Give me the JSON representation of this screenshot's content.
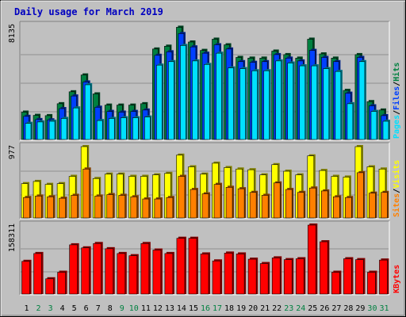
{
  "colors": {
    "background": "#c0c0c0",
    "title": "#0000c0",
    "hits": "#008040",
    "files": "#0040ff",
    "pages": "#00e0ff",
    "visits": "#ffff00",
    "sites": "#ff8000",
    "kbytes": "#ff0000",
    "weekday_label": "#000000",
    "weekend_label": "#008040"
  },
  "chart_data": {
    "type": "bar",
    "title": "Daily usage for March 2019",
    "categories": [
      "1",
      "2",
      "3",
      "4",
      "5",
      "6",
      "7",
      "8",
      "9",
      "10",
      "11",
      "12",
      "13",
      "14",
      "15",
      "16",
      "17",
      "18",
      "19",
      "20",
      "21",
      "22",
      "23",
      "24",
      "25",
      "26",
      "27",
      "28",
      "29",
      "30",
      "31"
    ],
    "weekend_days": [
      "2",
      "3",
      "9",
      "10",
      "16",
      "17",
      "23",
      "24",
      "30",
      "31"
    ],
    "grid": true,
    "panels": [
      {
        "id": "hits-files-pages",
        "max_label": "8135",
        "ylim": [
          0,
          8135
        ],
        "side_labels": [
          "Pages",
          "Files",
          "Hits"
        ],
        "series": [
          {
            "name": "Hits",
            "values": [
              1950,
              1720,
              1700,
              2550,
              3400,
              4600,
              3250,
              2450,
              2450,
              2450,
              2550,
              6450,
              6650,
              8000,
              6950,
              6350,
              7150,
              6750,
              5850,
              5800,
              5800,
              6300,
              6050,
              5800,
              7150,
              6100,
              5800,
              3500,
              6050,
              2700,
              2100
            ]
          },
          {
            "name": "Files",
            "values": [
              1650,
              1420,
              1400,
              2200,
              3100,
              4100,
              2300,
              2000,
              1950,
              2000,
              2100,
              6000,
              6250,
              7550,
              6600,
              6150,
              6750,
              6450,
              5550,
              5500,
              5550,
              6050,
              5800,
              5600,
              6350,
              5850,
              5550,
              3300,
              5850,
              2400,
              1700
            ]
          },
          {
            "name": "Pages",
            "values": [
              1150,
              1250,
              1300,
              1500,
              2250,
              3900,
              1350,
              1500,
              1550,
              1550,
              1600,
              5300,
              5550,
              6700,
              5600,
              5350,
              6150,
              5100,
              5050,
              4900,
              4900,
              5600,
              5450,
              5250,
              5250,
              5050,
              4850,
              2550,
              5550,
              2000,
              1300
            ]
          }
        ]
      },
      {
        "id": "visits-sites",
        "max_label": "977",
        "ylim": [
          0,
          977
        ],
        "side_labels": [
          "Sites",
          "Visits"
        ],
        "series": [
          {
            "name": "Visits",
            "values": [
              470,
              500,
              460,
              470,
              570,
              977,
              540,
              600,
              600,
              570,
              570,
              590,
              610,
              860,
              700,
              600,
              750,
              690,
              670,
              660,
              590,
              730,
              640,
              590,
              850,
              650,
              570,
              560,
              977,
              700,
              670
            ]
          },
          {
            "name": "Sites",
            "values": [
              280,
              300,
              290,
              270,
              310,
              670,
              300,
              320,
              310,
              290,
              260,
              260,
              280,
              570,
              390,
              330,
              460,
              420,
              400,
              350,
              310,
              480,
              390,
              350,
              410,
              370,
              290,
              280,
              620,
              340,
              350
            ]
          }
        ]
      },
      {
        "id": "kbytes",
        "max_label": "158311",
        "ylim": [
          0,
          158311
        ],
        "side_labels": [
          "KBytes"
        ],
        "series": [
          {
            "name": "KBytes",
            "values": [
              75000,
              93000,
              35000,
              50000,
              113000,
              106000,
              116000,
              104000,
              93000,
              88000,
              116000,
              101000,
              93000,
              128000,
              128000,
              92000,
              76000,
              94000,
              92000,
              80000,
              70000,
              83000,
              79000,
              81000,
              158311,
              120000,
              50000,
              81000,
              79000,
              50000,
              78000
            ]
          }
        ]
      }
    ]
  }
}
